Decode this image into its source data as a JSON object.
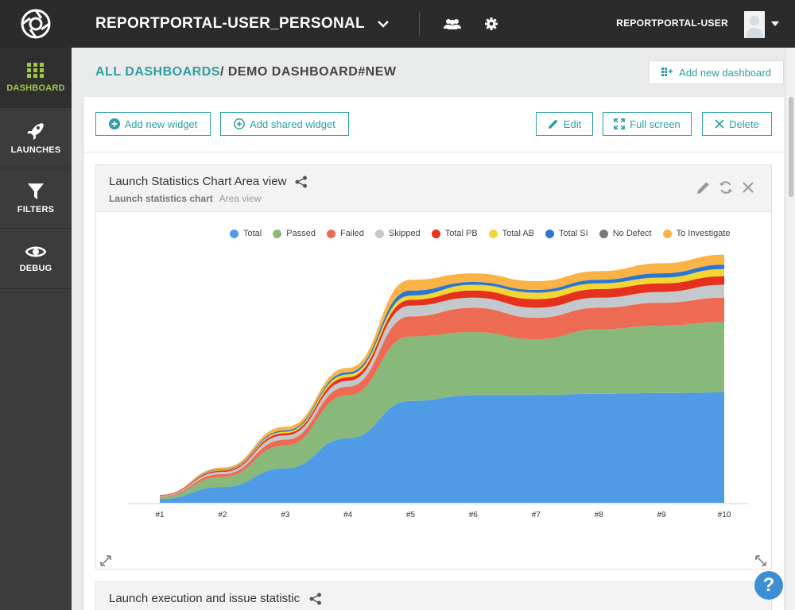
{
  "sidebar": {
    "items": [
      {
        "label": "DASHBOARD",
        "icon": "grid-icon",
        "active": true
      },
      {
        "label": "LAUNCHES",
        "icon": "rocket-icon",
        "active": false
      },
      {
        "label": "FILTERS",
        "icon": "filter-icon",
        "active": false
      },
      {
        "label": "DEBUG",
        "icon": "eye-icon",
        "active": false
      }
    ]
  },
  "topbar": {
    "project": "REPORTPORTAL-USER_PERSONAL",
    "username": "REPORTPORTAL-USER"
  },
  "breadcrumb": {
    "link": "ALL DASHBOARDS",
    "separator": "/ ",
    "current": "DEMO DASHBOARD#NEW"
  },
  "toolbar": {
    "add_dashboard": "Add new dashboard",
    "add_widget": "Add new widget",
    "add_shared_widget": "Add shared widget",
    "edit": "Edit",
    "full_screen": "Full screen",
    "delete": "Delete"
  },
  "widget": {
    "title": "Launch Statistics Chart Area view",
    "kind": "Launch statistics chart",
    "view": "Area view"
  },
  "widget2": {
    "title": "Launch execution and issue statistic"
  },
  "colors": {
    "accent": "#2e9ea3",
    "active_nav": "#a2c846"
  },
  "help": {
    "label": "?"
  },
  "chart_data": {
    "type": "area",
    "stacked": true,
    "categories": [
      "#1",
      "#2",
      "#3",
      "#4",
      "#5",
      "#6",
      "#7",
      "#8",
      "#9",
      "#10"
    ],
    "series": [
      {
        "name": "Total",
        "color": "#4f9be5",
        "values": [
          5,
          22,
          48,
          90,
          142,
          150,
          150,
          152,
          153,
          154
        ]
      },
      {
        "name": "Passed",
        "color": "#88b87a",
        "values": [
          3,
          14,
          32,
          60,
          90,
          88,
          78,
          90,
          94,
          98
        ]
      },
      {
        "name": "Failed",
        "color": "#ee6b53",
        "values": [
          1,
          4,
          8,
          12,
          28,
          34,
          30,
          30,
          32,
          34
        ]
      },
      {
        "name": "Skipped",
        "color": "#c3c8cd",
        "values": [
          1,
          3,
          6,
          8,
          15,
          14,
          14,
          14,
          15,
          18
        ]
      },
      {
        "name": "Total PB",
        "color": "#e5321d",
        "values": [
          1,
          2,
          3,
          5,
          8,
          10,
          12,
          12,
          12,
          12
        ]
      },
      {
        "name": "Total AB",
        "color": "#f3d633",
        "values": [
          0,
          1,
          2,
          4,
          6,
          8,
          9,
          8,
          8,
          10
        ]
      },
      {
        "name": "Total SI",
        "color": "#2b76d4",
        "values": [
          0,
          1,
          2,
          3,
          7,
          4,
          4,
          5,
          6,
          6
        ]
      },
      {
        "name": "No Defect",
        "color": "#777777",
        "values": [
          0,
          0,
          0,
          0,
          0,
          0,
          0,
          0,
          0,
          0
        ]
      },
      {
        "name": "To Investigate",
        "color": "#f9b347",
        "values": [
          0,
          2,
          5,
          6,
          15,
          12,
          12,
          12,
          14,
          14
        ]
      }
    ],
    "ylim": [
      0,
      360
    ]
  }
}
